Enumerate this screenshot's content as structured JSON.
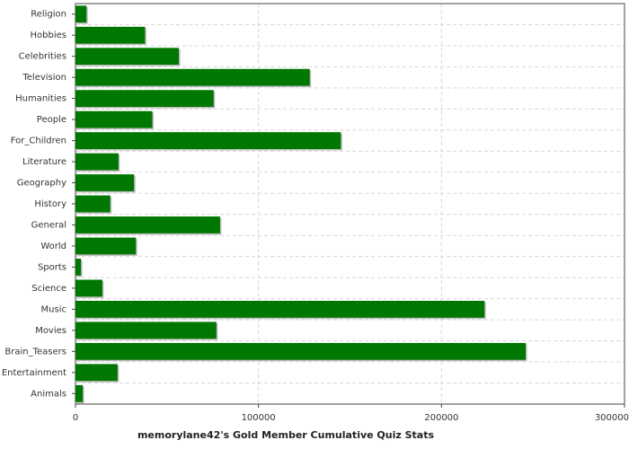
{
  "chart_data": {
    "type": "hbar",
    "title": "memorylane42's Gold Member Cumulative Quiz Stats",
    "categories": [
      "Religion",
      "Hobbies",
      "Celebrities",
      "Television",
      "Humanities",
      "People",
      "For_Children",
      "Literature",
      "Geography",
      "History",
      "General",
      "World",
      "Sports",
      "Science",
      "Music",
      "Movies",
      "Brain_Teasers",
      "Entertainment",
      "Animals"
    ],
    "values": [
      6000,
      38000,
      56500,
      128000,
      75500,
      42000,
      145000,
      23500,
      32000,
      19000,
      79000,
      33000,
      3000,
      14700,
      223500,
      77000,
      246000,
      23000,
      4000
    ],
    "color": "#007700",
    "xlim": [
      0,
      300000
    ],
    "xticks": [
      0,
      100000,
      200000,
      300000
    ],
    "grid": true
  }
}
